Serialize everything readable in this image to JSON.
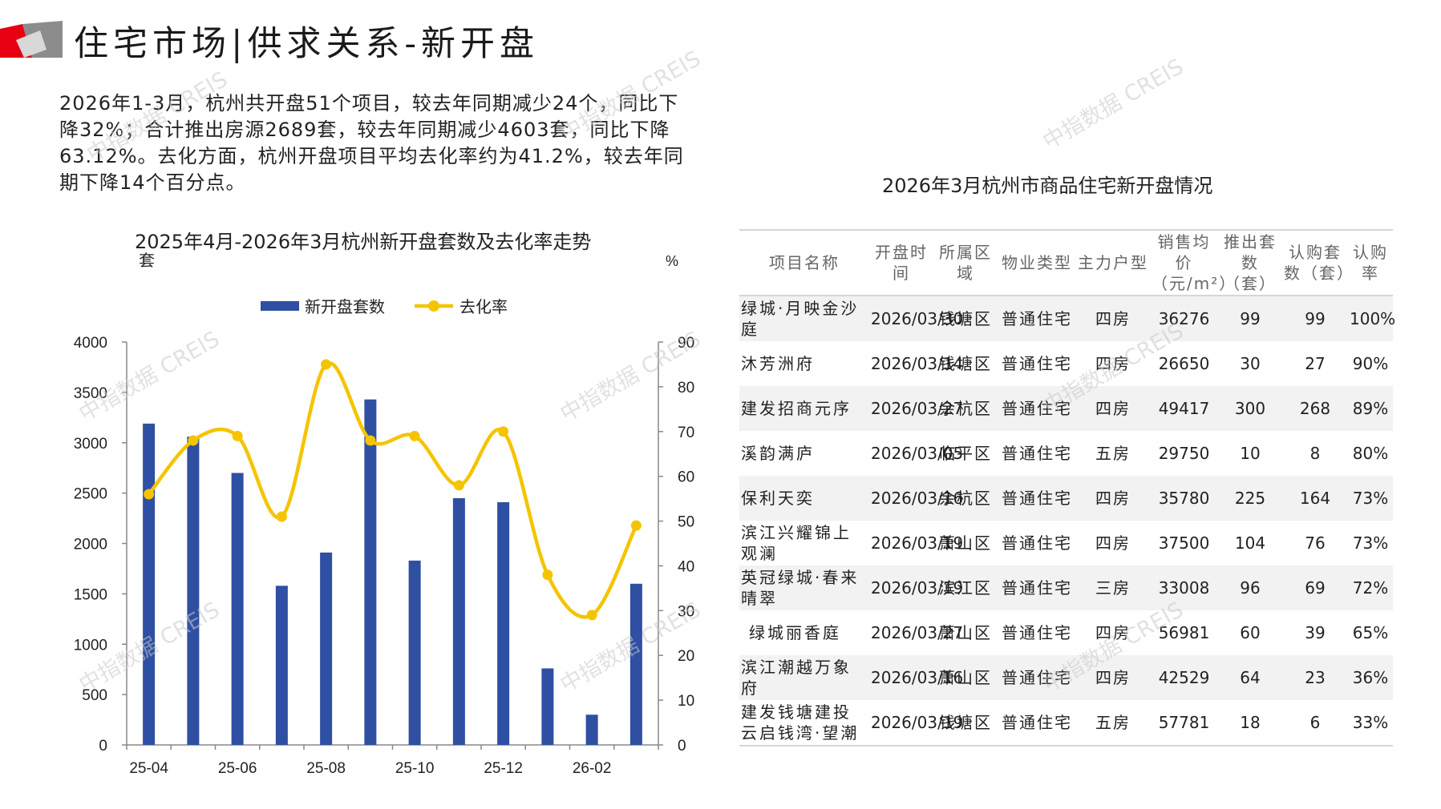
{
  "header": {
    "title": "住宅市场|供求关系-新开盘",
    "colors": {
      "red": "#e60012",
      "gray": "#8c8c8c"
    }
  },
  "summary": "2026年1-3月，杭州共开盘51个项目，较去年同期减少24个，同比下降32%；合计推出房源2689套，较去年同期减少4603套，同比下降63.12%。去化方面，杭州开盘项目平均去化率约为41.2%，较去年同期下降14个百分点。",
  "watermark_text": "中指数据 CREIS",
  "chart_data": {
    "type": "bar+line",
    "title": "2025年4月-2026年3月杭州新开盘套数及去化率走势",
    "ylabel_left": "套",
    "ylabel_right": "%",
    "x": [
      "25-04",
      "25-05",
      "25-06",
      "25-07",
      "25-08",
      "25-09",
      "25-10",
      "25-11",
      "25-12",
      "26-01",
      "26-02",
      "26-03"
    ],
    "x_tick_labels": [
      "25-04",
      "",
      "25-06",
      "",
      "25-08",
      "",
      "25-10",
      "",
      "25-12",
      "",
      "26-02",
      ""
    ],
    "ylim_left": [
      0,
      4000
    ],
    "yticks_left": [
      0,
      500,
      1000,
      1500,
      2000,
      2500,
      3000,
      3500,
      4000
    ],
    "ylim_right": [
      0,
      90
    ],
    "yticks_right": [
      0,
      10,
      20,
      30,
      40,
      50,
      60,
      70,
      80,
      90
    ],
    "legend_position": "top",
    "grid": false,
    "series": [
      {
        "name": "新开盘套数",
        "type": "bar",
        "axis": "left",
        "color": "#2f4fa2",
        "values": [
          3190,
          3060,
          2700,
          1580,
          1910,
          3430,
          1830,
          2450,
          2410,
          760,
          300,
          1600
        ]
      },
      {
        "name": "去化率",
        "type": "line",
        "axis": "right",
        "color": "#f5c400",
        "values": [
          56,
          68,
          69,
          51,
          85,
          68,
          69,
          58,
          70,
          38,
          29,
          49
        ]
      }
    ]
  },
  "table": {
    "title": "2026年3月杭州市商品住宅新开盘情况",
    "headers": [
      "项目名称",
      "开盘时间",
      "所属区域",
      "物业类型",
      "主力户型",
      "销售均价（元/m²）",
      "推出套数（套）",
      "认购套数（套）",
      "认购率"
    ],
    "rows": [
      [
        "绿城·月映金沙庭",
        "2026/03/30",
        "钱塘区",
        "普通住宅",
        "四房",
        "36276",
        "99",
        "99",
        "100%"
      ],
      [
        "沐芳洲府",
        "2026/03/14",
        "钱塘区",
        "普通住宅",
        "四房",
        "26650",
        "30",
        "27",
        "90%"
      ],
      [
        "建发招商元序",
        "2026/03/27",
        "余杭区",
        "普通住宅",
        "四房",
        "49417",
        "300",
        "268",
        "89%"
      ],
      [
        "溪韵满庐",
        "2026/03/05",
        "临平区",
        "普通住宅",
        "五房",
        "29750",
        "10",
        "8",
        "80%"
      ],
      [
        "保利天奕",
        "2026/03/16",
        "余杭区",
        "普通住宅",
        "四房",
        "35780",
        "225",
        "164",
        "73%"
      ],
      [
        "滨江兴耀锦上观澜",
        "2026/03/19",
        "萧山区",
        "普通住宅",
        "四房",
        "37500",
        "104",
        "76",
        "73%"
      ],
      [
        "英冠绿城·春来晴翠",
        "2026/03/19",
        "滨江区",
        "普通住宅",
        "三房",
        "33008",
        "96",
        "69",
        "72%"
      ],
      [
        "绿城丽香庭",
        "2026/03/27",
        "萧山区",
        "普通住宅",
        "四房",
        "56981",
        "60",
        "39",
        "65%"
      ],
      [
        "滨江潮越万象府",
        "2026/03/16",
        "萧山区",
        "普通住宅",
        "四房",
        "42529",
        "64",
        "23",
        "36%"
      ],
      [
        "建发钱塘建投云启钱湾·望潮",
        "2026/03/19",
        "钱塘区",
        "普通住宅",
        "五房",
        "57781",
        "18",
        "6",
        "33%"
      ]
    ]
  }
}
